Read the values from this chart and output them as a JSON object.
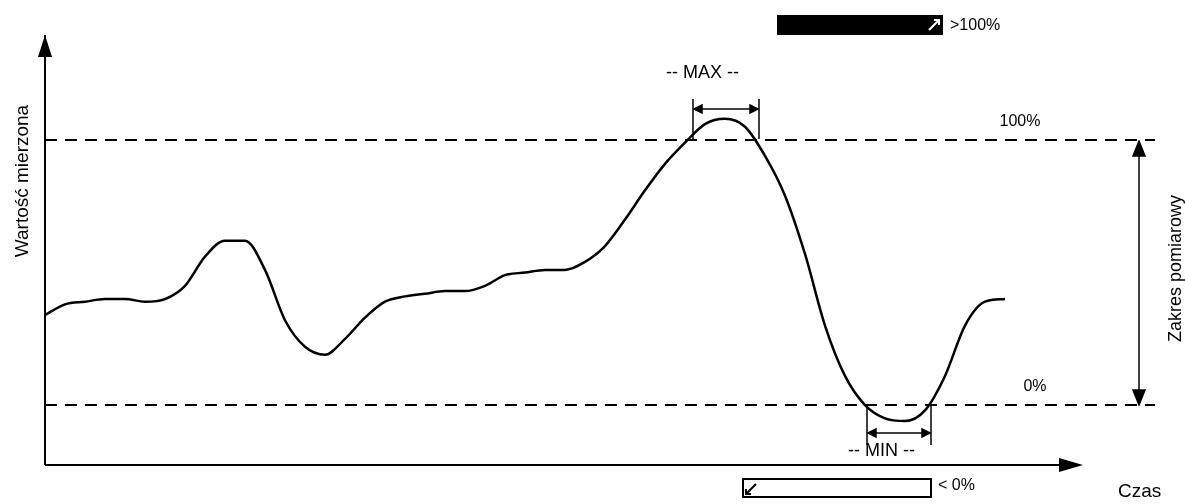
{
  "chart_data": {
    "type": "line",
    "xlabel": "Czas",
    "ylabel": "Wartość mierzona",
    "categories": [
      null,
      null,
      null,
      null,
      null,
      null,
      null,
      null,
      null,
      null,
      null,
      null,
      null,
      null,
      null,
      null,
      null,
      null,
      null,
      null,
      null,
      null,
      null,
      null,
      null,
      null,
      null,
      null,
      null,
      null,
      null,
      null,
      null,
      null,
      null,
      null,
      null,
      null,
      null,
      null,
      null,
      null,
      null,
      null,
      null,
      null,
      null,
      null,
      null,
      null,
      null,
      null,
      null,
      null,
      null,
      null
    ],
    "series": [
      {
        "color": "#000000",
        "values": [
          34,
          38,
          39,
          40,
          40,
          39,
          40,
          45,
          56,
          62,
          62,
          51,
          32,
          22,
          19,
          25,
          33,
          39,
          41,
          42,
          43,
          43,
          45,
          49,
          50,
          51,
          51,
          54,
          60,
          70,
          81,
          91,
          99,
          106,
          108,
          105,
          94,
          79,
          57,
          30,
          11,
          0,
          -5,
          -6,
          -2,
          11,
          30,
          39,
          40,
          null,
          null,
          null,
          null,
          null,
          null,
          null
        ]
      }
    ],
    "ylim": [
      -22.6,
      139.6
    ],
    "ref_lines": [
      {
        "axis": "y",
        "value": 100,
        "label": "100%",
        "color": "#000000",
        "line_style": "dashed"
      },
      {
        "axis": "y",
        "value": 0,
        "label": "0%",
        "color": "#000000",
        "line_style": "dashed"
      }
    ],
    "annotations": [
      "-- MAX --",
      "-- MIN --",
      ">100%",
      "< 0%",
      "Zakres pomiarowy"
    ],
    "legend": false,
    "tick_labels": false,
    "marker": "none",
    "line_style": "solid"
  }
}
